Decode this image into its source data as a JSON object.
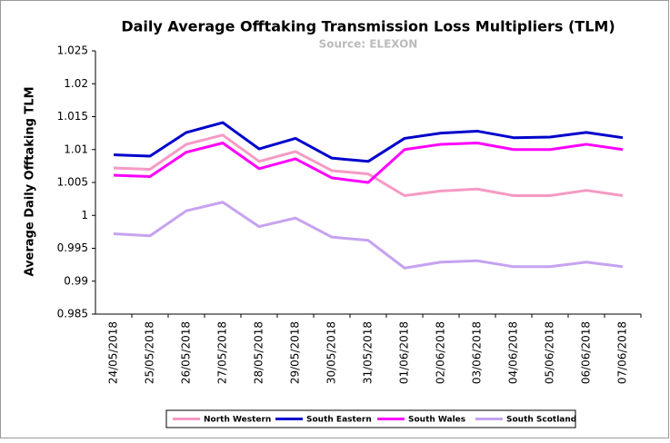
{
  "chart_data": {
    "type": "line",
    "title": "Daily Average Offtaking Transmission Loss Multipliers (TLM)",
    "subtitle": "Source: ELEXON",
    "y_label": "Average Daily Offtaking TLM",
    "categories": [
      "24/05/2018",
      "25/05/2018",
      "26/05/2018",
      "27/05/2018",
      "28/05/2018",
      "29/05/2018",
      "30/05/2018",
      "31/05/2018",
      "01/06/2018",
      "02/06/2018",
      "03/06/2018",
      "04/06/2018",
      "05/06/2018",
      "06/06/2018",
      "07/06/2018"
    ],
    "series": [
      {
        "name": "North Western",
        "color": "#f59ac4",
        "values": [
          1.0072,
          1.007,
          1.0108,
          1.0122,
          1.0082,
          1.0097,
          1.0068,
          1.0063,
          1.003,
          1.0037,
          1.004,
          1.003,
          1.003,
          1.0038,
          1.003
        ]
      },
      {
        "name": "South Eastern",
        "color": "#0000cc",
        "values": [
          1.0092,
          1.009,
          1.0126,
          1.0141,
          1.0101,
          1.0117,
          1.0087,
          1.0082,
          1.0117,
          1.0125,
          1.0128,
          1.0118,
          1.0119,
          1.0126,
          1.0118
        ]
      },
      {
        "name": "South Wales",
        "color": "#ff00ff",
        "values": [
          1.0061,
          1.0059,
          1.0096,
          1.011,
          1.0071,
          1.0086,
          1.0057,
          1.005,
          1.01,
          1.0108,
          1.011,
          1.01,
          1.01,
          1.0108,
          1.01
        ]
      },
      {
        "name": "South Scotland",
        "color": "#c6a2f0",
        "values": [
          0.9972,
          0.9969,
          1.0007,
          1.002,
          0.9983,
          0.9996,
          0.9967,
          0.9962,
          0.992,
          0.9929,
          0.9931,
          0.9922,
          0.9922,
          0.9929,
          0.9922
        ]
      }
    ],
    "ylim": [
      0.985,
      1.025
    ],
    "yticks": [
      0.985,
      0.99,
      0.995,
      1,
      1.005,
      1.01,
      1.015,
      1.02,
      1.025
    ],
    "legend": "bottom"
  }
}
